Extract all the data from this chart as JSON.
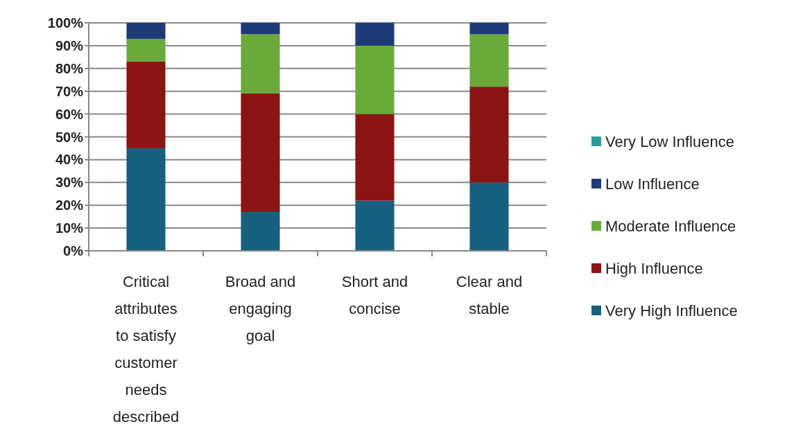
{
  "chart_data": {
    "type": "bar",
    "stacked": true,
    "categories": [
      "Critical attributes to satisfy customer needs described",
      "Broad and engaging goal",
      "Short and concise",
      "Clear and stable"
    ],
    "series": [
      {
        "name": "Very High Influence",
        "color": "#17607f",
        "values": [
          45,
          17,
          22,
          30
        ]
      },
      {
        "name": "High Influence",
        "color": "#8b1515",
        "values": [
          38,
          52,
          38,
          42
        ]
      },
      {
        "name": "Moderate Influence",
        "color": "#6aaa3a",
        "values": [
          10,
          26,
          30,
          23
        ]
      },
      {
        "name": "Low Influence",
        "color": "#1f3a78",
        "values": [
          7,
          5,
          10,
          5
        ]
      },
      {
        "name": "Very Low Influence",
        "color": "#2a9a9a",
        "values": [
          0,
          0,
          0,
          0
        ]
      }
    ],
    "ylim": [
      0,
      100
    ],
    "yticks": [
      {
        "value": 0,
        "label": "0%"
      },
      {
        "value": 10,
        "label": "10%"
      },
      {
        "value": 20,
        "label": "20%"
      },
      {
        "value": 30,
        "label": "30%"
      },
      {
        "value": 40,
        "label": "40%"
      },
      {
        "value": 50,
        "label": "50%"
      },
      {
        "value": 60,
        "label": "60%"
      },
      {
        "value": 70,
        "label": "70%"
      },
      {
        "value": 80,
        "label": "80%"
      },
      {
        "value": 90,
        "label": "90%"
      },
      {
        "value": 100,
        "label": "100%"
      }
    ],
    "grid": "y",
    "legend": "right"
  }
}
